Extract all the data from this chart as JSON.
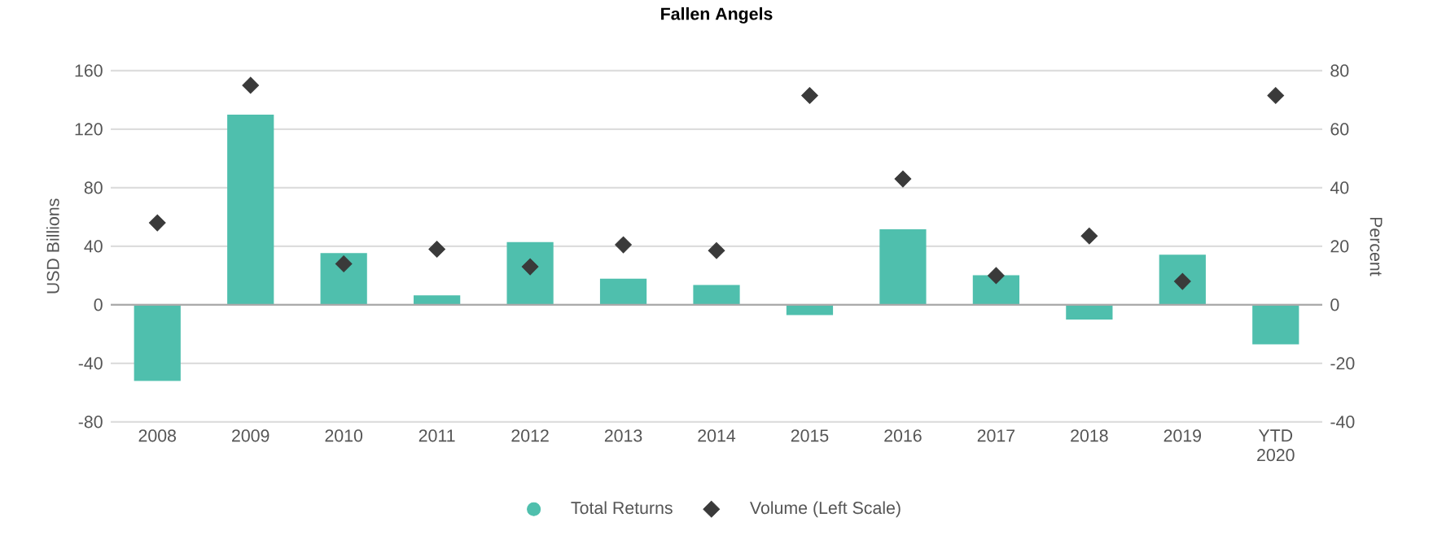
{
  "chart_data": {
    "type": "bar",
    "title": "Fallen Angels",
    "ylabel": "USD Billions",
    "y2label": "Percent",
    "categories": [
      "2008",
      "2009",
      "2010",
      "2011",
      "2012",
      "2013",
      "2014",
      "2015",
      "2016",
      "2017",
      "2018",
      "2019",
      "YTD 2020"
    ],
    "ylim": [
      -80,
      160
    ],
    "yticks": [
      -80,
      -40,
      0,
      40,
      80,
      120,
      160
    ],
    "y2lim": [
      -40,
      80
    ],
    "y2ticks": [
      -40,
      -20,
      0,
      20,
      40,
      60,
      80
    ],
    "grid": "y",
    "legend": "bottom",
    "series": [
      {
        "name": "Total Returns",
        "axis": "y2",
        "color": "#4fbfad",
        "values": [
          -26,
          65,
          17.7,
          3.2,
          21.4,
          8.9,
          6.8,
          -3.5,
          25.8,
          10.1,
          -5,
          17.1,
          -13.5
        ]
      },
      {
        "name": "Volume (Left Scale)",
        "type": "scatter",
        "axis": "y",
        "marker": "diamond",
        "color": "#3a3a3a",
        "values": [
          56,
          150,
          28,
          38,
          26,
          41,
          37,
          143,
          86,
          20,
          47,
          16,
          143
        ]
      }
    ]
  }
}
